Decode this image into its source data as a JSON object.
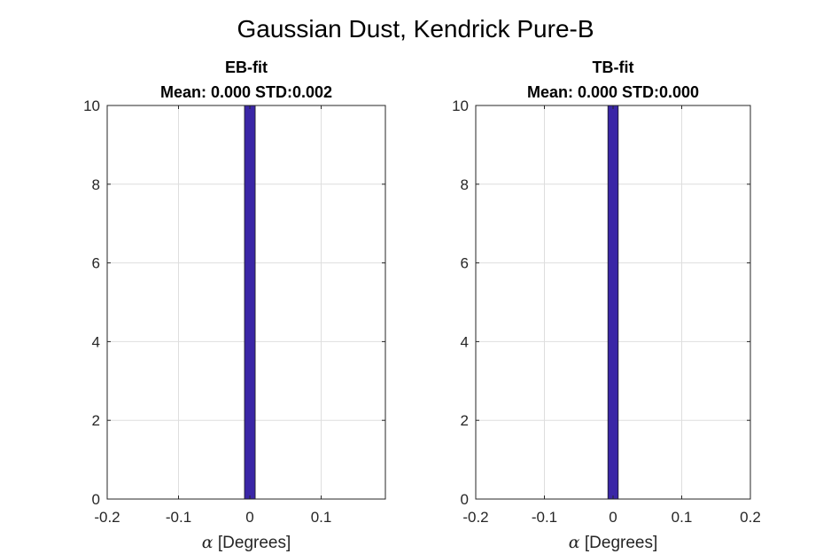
{
  "figure": {
    "title": "Gaussian Dust, Kendrick Pure-B"
  },
  "colors": {
    "bar": "#3a26a6",
    "bar_edge": "#1a1a1a",
    "grid": "#dedede",
    "axis": "#262626"
  },
  "chart_data": [
    {
      "type": "bar",
      "title_line1": "EB-fit",
      "title_line2": "Mean: 0.000 STD:0.002",
      "xlabel_symbol": "α",
      "xlabel_text": " [Degrees]",
      "ylabel": "",
      "xlim": [
        -0.2,
        0.19
      ],
      "ylim": [
        0,
        10
      ],
      "xticks": [
        -0.2,
        -0.1,
        0,
        0.1
      ],
      "xtick_labels": [
        "-0.2",
        "-0.1",
        "0",
        "0.1"
      ],
      "yticks": [
        0,
        2,
        4,
        6,
        8,
        10
      ],
      "ytick_labels": [
        "0",
        "2",
        "4",
        "6",
        "8",
        "10"
      ],
      "grid": true,
      "bins": [
        {
          "x0": -0.0075,
          "x1": 0.0075,
          "count": 10
        }
      ]
    },
    {
      "type": "bar",
      "title_line1": "TB-fit",
      "title_line2": "Mean: 0.000 STD:0.000",
      "xlabel_symbol": "α",
      "xlabel_text": " [Degrees]",
      "ylabel": "",
      "xlim": [
        -0.2,
        0.2
      ],
      "ylim": [
        0,
        10
      ],
      "xticks": [
        -0.2,
        -0.1,
        0,
        0.1,
        0.2
      ],
      "xtick_labels": [
        "-0.2",
        "-0.1",
        "0",
        "0.1",
        "0.2"
      ],
      "yticks": [
        0,
        2,
        4,
        6,
        8,
        10
      ],
      "ytick_labels": [
        "0",
        "2",
        "4",
        "6",
        "8",
        "10"
      ],
      "grid": true,
      "bins": [
        {
          "x0": -0.0075,
          "x1": 0.0075,
          "count": 10
        }
      ]
    }
  ]
}
